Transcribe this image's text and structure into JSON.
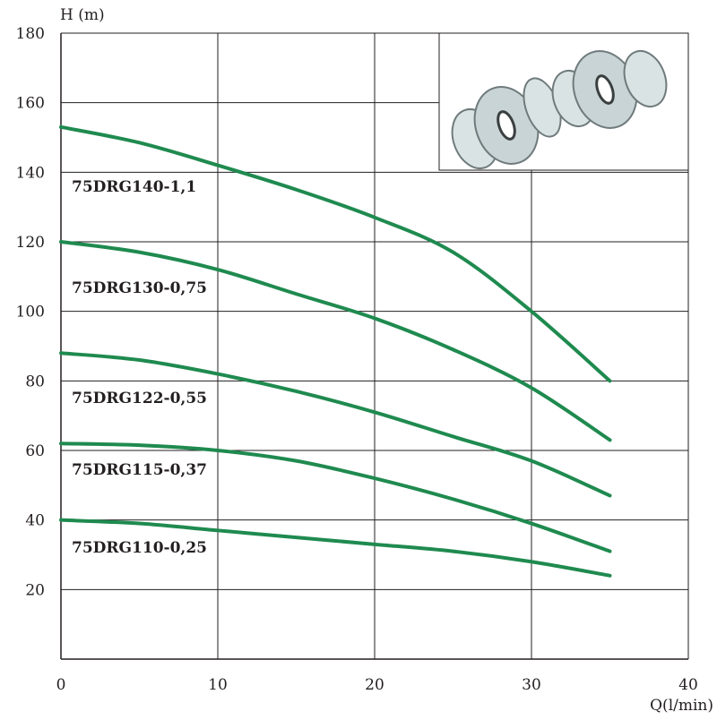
{
  "chart_data": {
    "type": "line",
    "xlabel": "Q(l/min)",
    "ylabel": "H (m)",
    "xlim": [
      0,
      40
    ],
    "ylim": [
      0,
      180
    ],
    "x_ticks": [
      "0",
      "10",
      "20",
      "30",
      "40"
    ],
    "y_ticks": [
      "20",
      "40",
      "60",
      "80",
      "100",
      "120",
      "140",
      "160",
      "180"
    ],
    "grid": true,
    "line_color": "#1f8a4f",
    "x": [
      0,
      5,
      10,
      15,
      20,
      25,
      30,
      35
    ],
    "series": [
      {
        "name": "75DRG140-1,1",
        "values": [
          153,
          148.5,
          142,
          135,
          127,
          117,
          100,
          80
        ]
      },
      {
        "name": "75DRG130-0,75",
        "values": [
          120,
          117,
          112,
          105,
          98,
          89,
          78,
          63
        ]
      },
      {
        "name": "75DRG122-0,55",
        "values": [
          88,
          86,
          82,
          77,
          71,
          64,
          57,
          47
        ]
      },
      {
        "name": "75DRG115-0,37",
        "values": [
          62,
          61.5,
          60,
          57,
          52,
          46,
          39,
          31
        ]
      },
      {
        "name": "75DRG110-0,25",
        "values": [
          40,
          39,
          37,
          35,
          33,
          31,
          28,
          24
        ]
      }
    ],
    "inset_image": "pump-impeller-stages-illustration"
  }
}
